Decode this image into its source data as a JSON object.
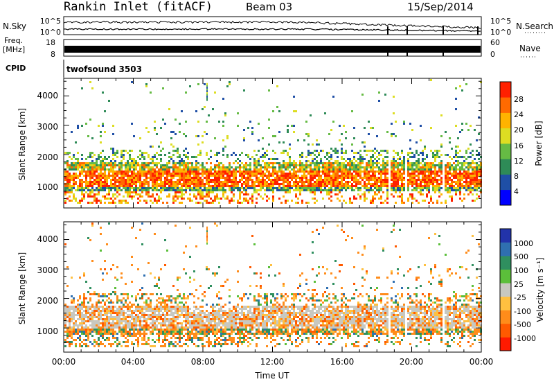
{
  "header": {
    "station": "Rankin Inlet (fitACF)",
    "beam": "Beam 03",
    "date": "15/Sep/2014"
  },
  "strip_panels": {
    "nsky": {
      "label": "N.Sky",
      "ticks": [
        "10^5",
        "10^0"
      ]
    },
    "nsearch": {
      "label": "N.Search",
      "ticks": [
        "10^5",
        "10^0"
      ]
    },
    "freq": {
      "label_line1": "Freq.",
      "label_line2": "[MHz]",
      "ticks": [
        "18",
        "8"
      ]
    },
    "nave": {
      "label": "Nave",
      "ticks": [
        "60",
        "0"
      ]
    },
    "cpid": {
      "label": "CPID",
      "value": "twofsound 3503"
    }
  },
  "chart_data": [
    {
      "type": "heatmap",
      "panel": "power",
      "ylabel": "Slant Range [km]",
      "yticks": [
        "1000",
        "2000",
        "3000",
        "4000"
      ],
      "ylim": [
        180,
        4600
      ],
      "xlim": [
        0,
        24
      ],
      "colorbar_label": "Power [dB]",
      "colorbar_ticks": [
        "28",
        "24",
        "20",
        "16",
        "12",
        "8",
        "4"
      ],
      "colorbar_colors": [
        "#0000ff",
        "#1f4fa6",
        "#2e8b57",
        "#66bb44",
        "#dddd22",
        "#ffb300",
        "#ff6a00",
        "#ff2000"
      ]
    },
    {
      "type": "heatmap",
      "panel": "velocity",
      "ylabel": "Slant Range [km]",
      "yticks": [
        "1000",
        "2000",
        "3000",
        "4000"
      ],
      "ylim": [
        180,
        4600
      ],
      "xlim": [
        0,
        24
      ],
      "xlabel": "Time UT",
      "xticks": [
        "00:00",
        "04:00",
        "08:00",
        "12:00",
        "16:00",
        "20:00",
        "00:00"
      ],
      "colorbar_label": "Velocity [m s⁻¹]",
      "colorbar_ticks": [
        "1000",
        "500",
        "100",
        "25",
        "-25",
        "-100",
        "-500",
        "-1000"
      ],
      "colorbar_colors": [
        "#2233aa",
        "#2f6fb0",
        "#2f8f5f",
        "#5bbf3a",
        "#c8c8c0",
        "#ffc040",
        "#ff8c1a",
        "#ff5a00",
        "#ff1a00"
      ]
    }
  ]
}
